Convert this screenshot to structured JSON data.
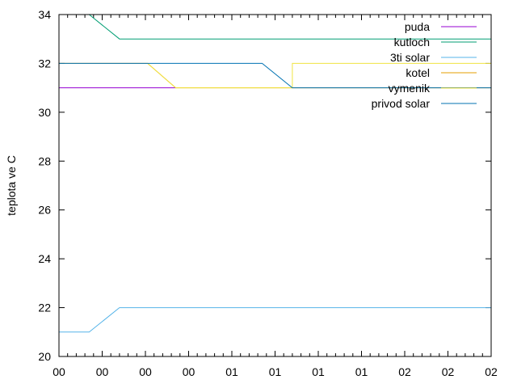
{
  "chart_data": {
    "type": "line",
    "title": "",
    "xlabel": "",
    "ylabel": "teplota ve C",
    "ylim": [
      20,
      34
    ],
    "yticks": [
      20,
      22,
      24,
      26,
      28,
      30,
      32,
      34
    ],
    "xlim": [
      0,
      10
    ],
    "xtick_labels": [
      "00",
      "00",
      "00",
      "00",
      "01",
      "01",
      "01",
      "01",
      "02",
      "02",
      "02"
    ],
    "x_minor_per_major": 5,
    "legend_position": "top-right",
    "series": [
      {
        "name": "puda",
        "color": "#9400d3",
        "points": [
          [
            0,
            31
          ],
          [
            2.7,
            31
          ]
        ]
      },
      {
        "name": "kutloch",
        "color": "#009e73",
        "points": [
          [
            0.7,
            34
          ],
          [
            1.4,
            33
          ],
          [
            10,
            33
          ]
        ]
      },
      {
        "name": "3ti solar",
        "color": "#56b4e9",
        "points": [
          [
            0,
            21
          ],
          [
            0.7,
            21
          ],
          [
            1.4,
            22
          ],
          [
            10,
            22
          ]
        ]
      },
      {
        "name": "kotel",
        "color": "#e69f00",
        "points": [
          [
            0,
            32
          ],
          [
            2.05,
            32
          ],
          [
            2.7,
            31
          ],
          [
            10,
            31
          ]
        ]
      },
      {
        "name": "vymenik",
        "color": "#f0e442",
        "points": [
          [
            2.05,
            32
          ],
          [
            2.7,
            31
          ],
          [
            5.4,
            31
          ],
          [
            5.4,
            32
          ],
          [
            10,
            32
          ]
        ]
      },
      {
        "name": "privod solar",
        "color": "#0072b2",
        "points": [
          [
            0,
            32
          ],
          [
            4.7,
            32
          ],
          [
            5.4,
            31
          ],
          [
            10,
            31
          ]
        ]
      }
    ]
  }
}
